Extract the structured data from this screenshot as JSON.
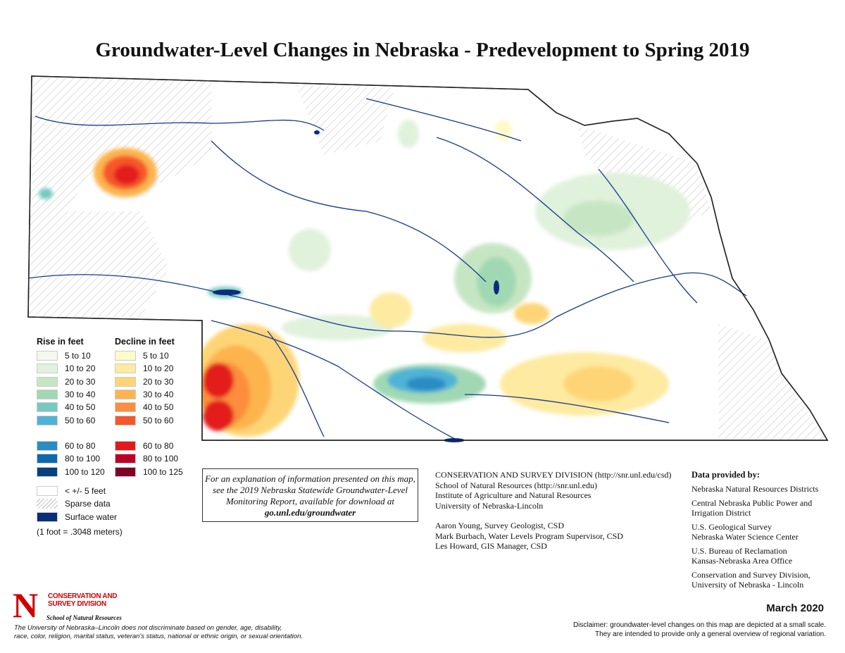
{
  "title": "Groundwater-Level Changes in Nebraska - Predevelopment to Spring 2019",
  "legend": {
    "rise_heading": "Rise in feet",
    "decline_heading": "Decline in feet",
    "rise": [
      {
        "label": "5 to 10",
        "color": "#f4f9ee"
      },
      {
        "label": "10 to 20",
        "color": "#e0f1dc"
      },
      {
        "label": "20 to 30",
        "color": "#c6e6c3"
      },
      {
        "label": "30 to 40",
        "color": "#a1d8b4"
      },
      {
        "label": "40 to 50",
        "color": "#76c9c0"
      },
      {
        "label": "50 to 60",
        "color": "#4fb3d6"
      },
      {
        "label": "60 to 80",
        "color": "#2b8cc4"
      },
      {
        "label": "80 to 100",
        "color": "#0e68ad"
      },
      {
        "label": "100 to 120",
        "color": "#08407f"
      }
    ],
    "decline": [
      {
        "label": "5 to 10",
        "color": "#fefac9"
      },
      {
        "label": "10 to 20",
        "color": "#feeaa0"
      },
      {
        "label": "20 to 30",
        "color": "#fed576"
      },
      {
        "label": "30 to 40",
        "color": "#fdb44e"
      },
      {
        "label": "40 to 50",
        "color": "#fc8d3c"
      },
      {
        "label": "50 to 60",
        "color": "#f6562b"
      },
      {
        "label": "60 to 80",
        "color": "#e31a1c"
      },
      {
        "label": "80 to 100",
        "color": "#bd0026"
      },
      {
        "label": "100 to 125",
        "color": "#800026"
      }
    ],
    "no_change": "< +/- 5 feet",
    "sparse": "Sparse data",
    "surface_water": "Surface water",
    "surface_water_color": "#0a2d7a",
    "conversion": "(1 foot = .3048 meters)"
  },
  "explanation": {
    "text": "For an explanation of information presented on this map, see the 2019 Nebraska Statewide Groundwater-Level Monitoring Report, available for download at",
    "link": "go.unl.edu/groundwater"
  },
  "csd": {
    "lines": [
      "CONSERVATION AND SURVEY DIVISION (http://snr.unl.edu/csd)",
      "School of Natural Resources (http://snr.unl.edu)",
      "Institute of Agriculture and Natural Resources",
      "University of Nebraska-Lincoln"
    ],
    "staff": [
      "Aaron Young, Survey Geologist, CSD",
      "Mark Burbach, Water Levels Program Supervisor, CSD",
      "Les Howard, GIS Manager, CSD"
    ]
  },
  "provided": {
    "heading": "Data provided by:",
    "items": [
      [
        "Nebraska Natural Resources Districts"
      ],
      [
        "Central Nebraska Public Power and",
        "Irrigation District"
      ],
      [
        "U.S. Geological Survey",
        "Nebraska Water Science Center"
      ],
      [
        "U.S. Bureau of Reclamation",
        "Kansas-Nebraska Area Office"
      ],
      [
        "Conservation and Survey Division,",
        "University of Nebraska - Lincoln"
      ]
    ]
  },
  "date": "March 2020",
  "disclaimer": [
    "Disclaimer: groundwater-level changes on this map are depicted at a small scale.",
    "They are intended to provide only a general overview of regional variation."
  ],
  "logo": {
    "letter": "N",
    "name_lines": [
      "CONSERVATION AND",
      "SURVEY DIVISION"
    ],
    "school": "School of Natural Resources"
  },
  "nondiscrimination": [
    "The University of Nebraska–Lincoln does not discriminate based on gender, age, disability,",
    "race, color, religion, marital status, veteran's status, national or ethnic origin, or sexual orientation."
  ]
}
